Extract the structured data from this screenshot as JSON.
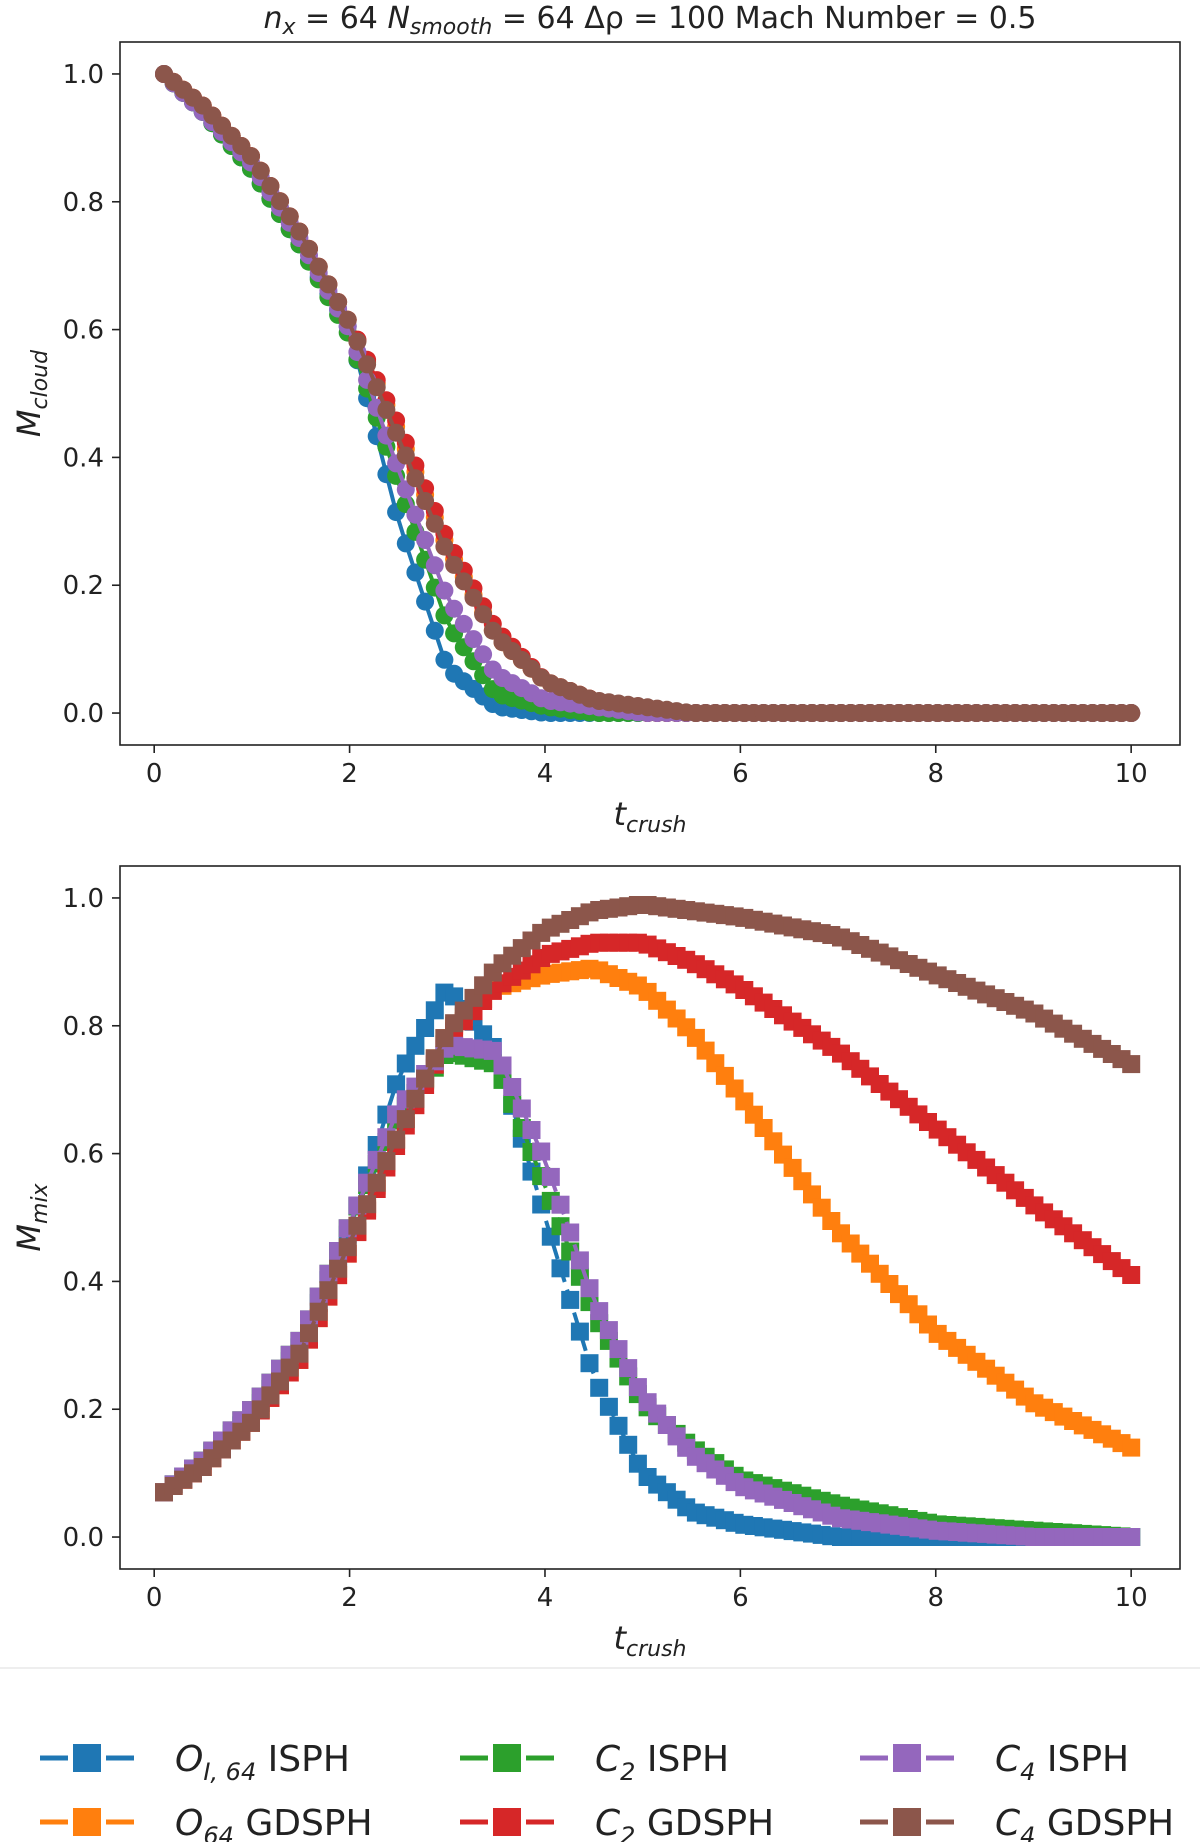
{
  "title_parts": {
    "nx_base": "n",
    "nx_sub": "x",
    "nx_eq": " = 64 ",
    "ns_base": "N",
    "ns_sub": "smooth",
    "ns_eq": " = 64 Δρ = 100 Mach Number = 0.5"
  },
  "colors": {
    "o_i64_isph": "#1f77b4",
    "o64_gdsph": "#ff7f0e",
    "c2_isph": "#2ca02c",
    "c2_gdsph": "#d62728",
    "c4_isph": "#9467bd",
    "c4_gdsph": "#8c564b"
  },
  "legend": [
    {
      "key": "o_i64_isph",
      "base": "O",
      "sub": "I, 64",
      "suffix": " ISPH"
    },
    {
      "key": "c2_isph",
      "base": "C",
      "sub": "2",
      "suffix": " ISPH"
    },
    {
      "key": "c4_isph",
      "base": "C",
      "sub": "4",
      "suffix": " ISPH"
    },
    {
      "key": "o64_gdsph",
      "base": "O",
      "sub": "64",
      "suffix": " GDSPH"
    },
    {
      "key": "c2_gdsph",
      "base": "C",
      "sub": "2",
      "suffix": " GDSPH"
    },
    {
      "key": "c4_gdsph",
      "base": "C",
      "sub": "4",
      "suffix": " GDSPH"
    }
  ],
  "chart_data": [
    {
      "type": "line",
      "marker": "circle",
      "ylabel_base": "M",
      "ylabel_sub": "cloud",
      "xlabel_base": "t",
      "xlabel_sub": "crush",
      "xlim": [
        -0.35,
        10.5
      ],
      "ylim": [
        -0.05,
        1.05
      ],
      "xticks": [
        "0",
        "2",
        "4",
        "6",
        "8",
        "10"
      ],
      "yticks": [
        "0.0",
        "0.2",
        "0.4",
        "0.6",
        "0.8",
        "1.0"
      ],
      "x": [
        0.1,
        0.5,
        1.0,
        1.5,
        2.0,
        2.5,
        3.0,
        3.5,
        4.0,
        4.5,
        5.0,
        5.5,
        6.0,
        7.0,
        8.0,
        9.0,
        10.0
      ],
      "series": [
        {
          "key": "o_i64_isph",
          "values": [
            1.0,
            0.94,
            0.85,
            0.73,
            0.6,
            0.3,
            0.07,
            0.01,
            0.0,
            0.0,
            0.0,
            0.0,
            0.0,
            0.0,
            0.0,
            0.0,
            0.0
          ]
        },
        {
          "key": "o64_gdsph",
          "values": [
            1.0,
            0.95,
            0.87,
            0.75,
            0.61,
            0.44,
            0.26,
            0.12,
            0.05,
            0.02,
            0.0,
            0.0,
            0.0,
            0.0,
            0.0,
            0.0,
            0.0
          ]
        },
        {
          "key": "c2_isph",
          "values": [
            1.0,
            0.94,
            0.85,
            0.73,
            0.59,
            0.36,
            0.14,
            0.03,
            0.01,
            0.0,
            0.0,
            0.0,
            0.0,
            0.0,
            0.0,
            0.0,
            0.0
          ]
        },
        {
          "key": "c2_gdsph",
          "values": [
            1.0,
            0.95,
            0.87,
            0.75,
            0.61,
            0.45,
            0.27,
            0.13,
            0.05,
            0.02,
            0.0,
            0.0,
            0.0,
            0.0,
            0.0,
            0.0,
            0.0
          ]
        },
        {
          "key": "c4_isph",
          "values": [
            1.0,
            0.94,
            0.86,
            0.74,
            0.6,
            0.38,
            0.18,
            0.06,
            0.02,
            0.01,
            0.0,
            0.0,
            0.0,
            0.0,
            0.0,
            0.0,
            0.0
          ]
        },
        {
          "key": "c4_gdsph",
          "values": [
            1.0,
            0.95,
            0.87,
            0.75,
            0.61,
            0.43,
            0.25,
            0.12,
            0.05,
            0.02,
            0.01,
            0.0,
            0.0,
            0.0,
            0.0,
            0.0,
            0.0
          ]
        }
      ]
    },
    {
      "type": "line",
      "marker": "square",
      "ylabel_base": "M",
      "ylabel_sub": "mix",
      "xlabel_base": "t",
      "xlabel_sub": "crush",
      "xlim": [
        -0.35,
        10.5
      ],
      "ylim": [
        -0.05,
        1.05
      ],
      "xticks": [
        "0",
        "2",
        "4",
        "6",
        "8",
        "10"
      ],
      "yticks": [
        "0.0",
        "0.2",
        "0.4",
        "0.6",
        "0.8",
        "1.0"
      ],
      "x": [
        0.1,
        0.5,
        1.0,
        1.5,
        2.0,
        2.5,
        3.0,
        3.5,
        4.0,
        4.5,
        5.0,
        5.5,
        6.0,
        7.0,
        8.0,
        9.0,
        10.0
      ],
      "series": [
        {
          "key": "o_i64_isph",
          "values": [
            0.07,
            0.12,
            0.19,
            0.3,
            0.48,
            0.72,
            0.86,
            0.76,
            0.5,
            0.25,
            0.1,
            0.04,
            0.02,
            0.0,
            0.0,
            0.0,
            0.0
          ]
        },
        {
          "key": "o64_gdsph",
          "values": [
            0.07,
            0.11,
            0.18,
            0.28,
            0.45,
            0.63,
            0.79,
            0.86,
            0.88,
            0.89,
            0.86,
            0.79,
            0.69,
            0.48,
            0.32,
            0.21,
            0.14
          ]
        },
        {
          "key": "c2_isph",
          "values": [
            0.07,
            0.12,
            0.2,
            0.31,
            0.49,
            0.66,
            0.76,
            0.74,
            0.55,
            0.35,
            0.21,
            0.14,
            0.09,
            0.05,
            0.02,
            0.01,
            0.0
          ]
        },
        {
          "key": "c2_gdsph",
          "values": [
            0.07,
            0.11,
            0.18,
            0.28,
            0.45,
            0.62,
            0.78,
            0.86,
            0.91,
            0.93,
            0.93,
            0.9,
            0.86,
            0.76,
            0.64,
            0.52,
            0.41
          ]
        },
        {
          "key": "c4_isph",
          "values": [
            0.07,
            0.12,
            0.2,
            0.31,
            0.49,
            0.67,
            0.77,
            0.76,
            0.59,
            0.37,
            0.22,
            0.13,
            0.08,
            0.03,
            0.01,
            0.0,
            0.0
          ]
        },
        {
          "key": "c4_gdsph",
          "values": [
            0.07,
            0.11,
            0.18,
            0.29,
            0.46,
            0.63,
            0.79,
            0.89,
            0.95,
            0.98,
            0.99,
            0.98,
            0.97,
            0.94,
            0.88,
            0.82,
            0.74
          ]
        }
      ]
    }
  ]
}
